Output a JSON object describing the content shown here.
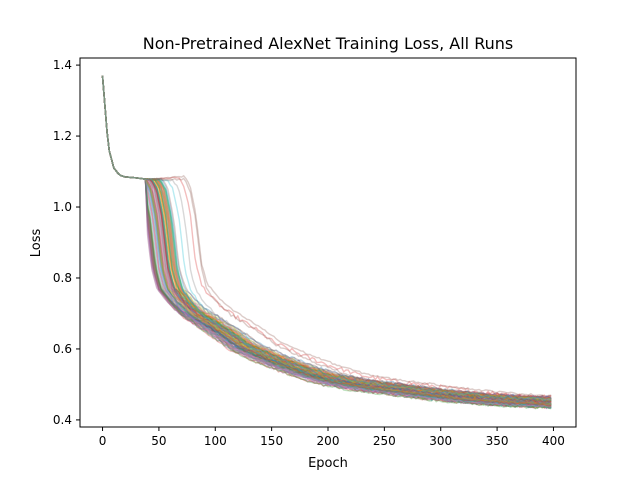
{
  "chart_data": {
    "type": "line",
    "title": "Non-Pretrained AlexNet Training Loss, All Runs",
    "xlabel": "Epoch",
    "ylabel": "Loss",
    "xlim": [
      -20,
      420
    ],
    "ylim": [
      0.38,
      1.42
    ],
    "x_ticks": [
      0,
      50,
      100,
      150,
      200,
      250,
      300,
      350,
      400
    ],
    "y_ticks": [
      0.4,
      0.6,
      0.8,
      1.0,
      1.2,
      1.4
    ],
    "x_tick_labels": [
      "0",
      "50",
      "100",
      "150",
      "200",
      "250",
      "300",
      "350",
      "400"
    ],
    "y_tick_labels": [
      "0.4",
      "0.6",
      "0.8",
      "1.0",
      "1.2",
      "1.4"
    ],
    "grid": false,
    "legend": "none",
    "series_count": 100,
    "series_colors": [
      "#1f77b4",
      "#ff7f0e",
      "#2ca02c",
      "#d62728",
      "#9467bd",
      "#8c564b",
      "#e377c2",
      "#7f7f7f",
      "#bcbd22",
      "#17becf"
    ],
    "representative_curve": {
      "x": [
        0,
        5,
        10,
        15,
        20,
        30,
        40,
        45,
        50,
        55,
        60,
        70,
        80,
        90,
        100,
        110,
        125,
        150,
        175,
        200,
        225,
        250,
        275,
        300,
        325,
        350,
        375,
        399
      ],
      "y": [
        1.37,
        1.17,
        1.11,
        1.09,
        1.085,
        1.082,
        1.078,
        1.05,
        0.97,
        0.83,
        0.77,
        0.73,
        0.7,
        0.68,
        0.66,
        0.64,
        0.605,
        0.57,
        0.54,
        0.515,
        0.5,
        0.49,
        0.48,
        0.47,
        0.462,
        0.456,
        0.452,
        0.448
      ]
    }
  }
}
